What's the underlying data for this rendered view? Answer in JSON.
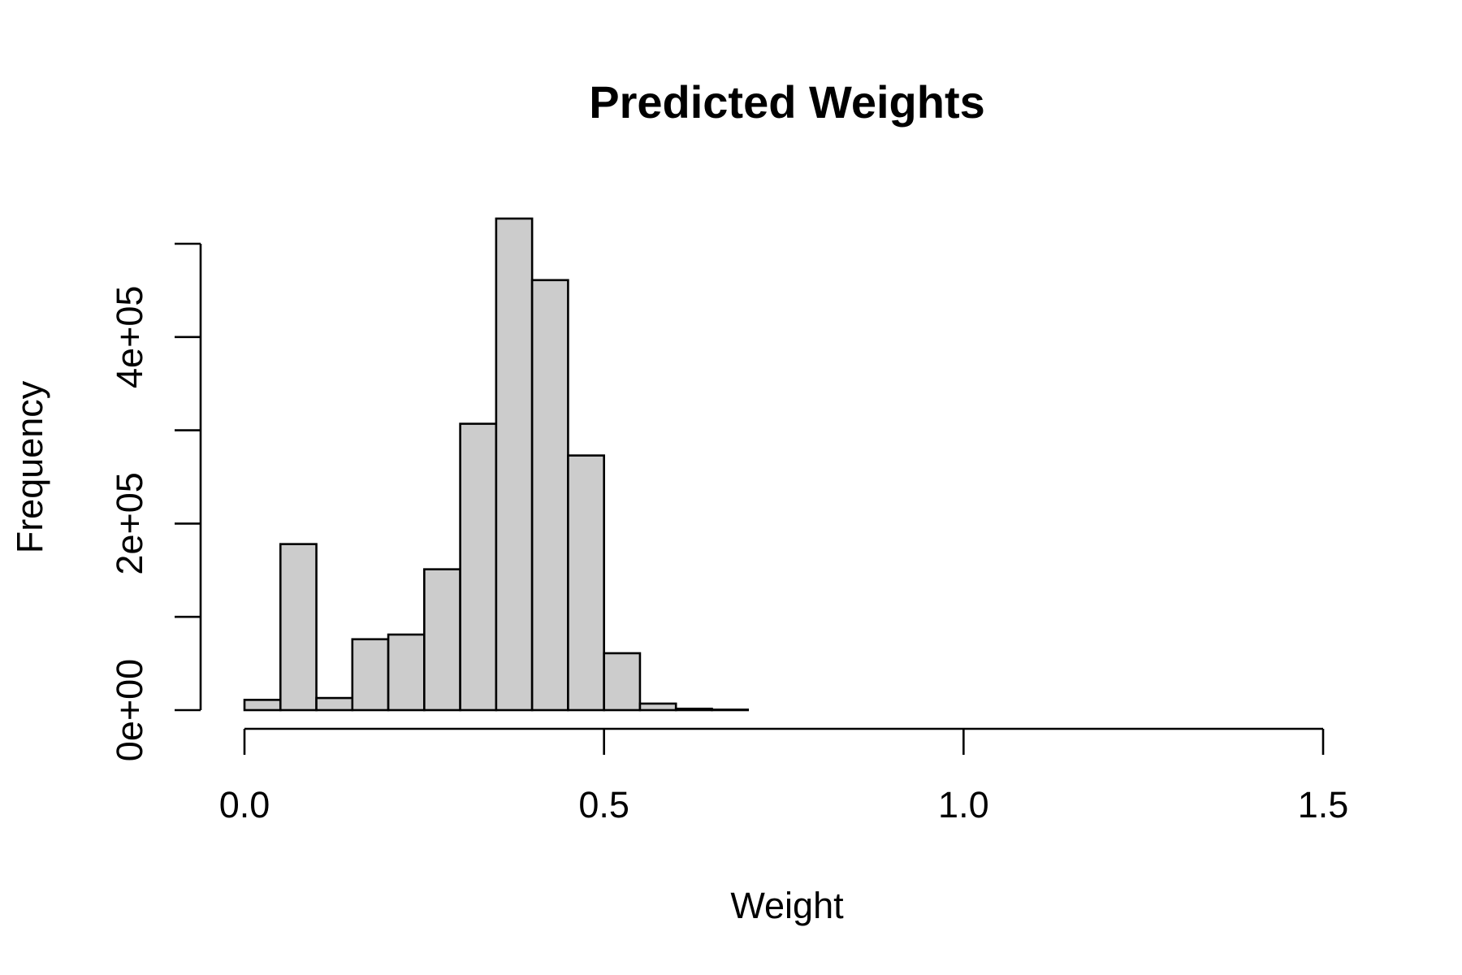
{
  "chart_data": {
    "type": "bar",
    "histogram": true,
    "title": "Predicted Weights",
    "xlabel": "Weight",
    "ylabel": "Frequency",
    "xlim": [
      0,
      1.5
    ],
    "ylim": [
      0,
      500000
    ],
    "x_ticks": [
      0,
      0.5,
      1.0,
      1.5
    ],
    "x_tick_labels": [
      "0.0",
      "0.5",
      "1.0",
      "1.5"
    ],
    "y_ticks": [
      0,
      100000,
      200000,
      300000,
      400000,
      500000
    ],
    "y_tick_labels": [
      "0e+00",
      "",
      "2e+05",
      "",
      "4e+05",
      ""
    ],
    "bin_edges": [
      0,
      0.05,
      0.1,
      0.15,
      0.2,
      0.25,
      0.3,
      0.35,
      0.4,
      0.45,
      0.5,
      0.55,
      0.6,
      0.65,
      0.7
    ],
    "values": [
      11000,
      178000,
      13000,
      76000,
      81000,
      151000,
      307000,
      527000,
      461000,
      273000,
      61000,
      7000,
      1500,
      500
    ],
    "grid": false,
    "legend": "none",
    "colors": {
      "bar_fill": "#cccccc",
      "bar_stroke": "#000000",
      "axis": "#000000",
      "background": "#ffffff"
    }
  }
}
